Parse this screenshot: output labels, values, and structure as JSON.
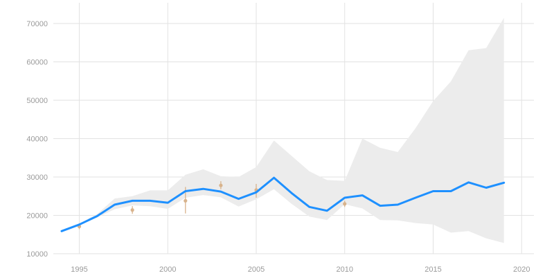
{
  "colors": {
    "line": "#1e90ff",
    "band": "#ececec",
    "grid": "#e2e2e2",
    "observation": "#d8b38c",
    "tick_text": "#9a9a9a"
  },
  "chart_data": {
    "type": "line",
    "grid": true,
    "legend": "none",
    "xlim": [
      1992,
      2021
    ],
    "ylim": [
      10000,
      72000
    ],
    "x_ticks": [
      "1995",
      "2000",
      "2005",
      "2010",
      "2015",
      "2020"
    ],
    "y_ticks": [
      "10000",
      "20000",
      "30000",
      "40000",
      "50000",
      "60000",
      "70000"
    ],
    "series": [
      {
        "kind": "line",
        "x": [
          1994,
          1995,
          1996,
          1997,
          1998,
          1999,
          2000,
          2001,
          2002,
          2003,
          2004,
          2005,
          2006,
          2007,
          2008,
          2009,
          2010,
          2011,
          2012,
          2013,
          2014,
          2015,
          2016,
          2017,
          2018,
          2019
        ],
        "values": [
          15900,
          17600,
          19800,
          22800,
          23800,
          23800,
          23300,
          26300,
          26900,
          26200,
          24300,
          26000,
          29800,
          25800,
          22200,
          21200,
          24600,
          25200,
          22500,
          22800,
          24600,
          26300,
          26300,
          28600,
          27200,
          28500
        ]
      },
      {
        "kind": "band",
        "x": [
          1994,
          1995,
          1996,
          1997,
          1998,
          1999,
          2000,
          2001,
          2002,
          2003,
          2004,
          2005,
          2006,
          2007,
          2008,
          2009,
          2010,
          2011,
          2012,
          2013,
          2014,
          2015,
          2016,
          2017,
          2018,
          2019
        ],
        "upper": [
          15900,
          17800,
          20300,
          24400,
          25000,
          26500,
          26500,
          30600,
          32000,
          30200,
          30000,
          32600,
          39500,
          35500,
          31500,
          29200,
          29000,
          40000,
          37600,
          36500,
          42700,
          49800,
          54900,
          63000,
          63600,
          71500
        ],
        "lower": [
          15900,
          17400,
          19400,
          21600,
          22600,
          22400,
          21700,
          24600,
          25300,
          24700,
          22300,
          24200,
          26800,
          23000,
          19700,
          18800,
          22900,
          21800,
          18800,
          18700,
          18000,
          17600,
          15500,
          15900,
          14000,
          12800
        ]
      },
      {
        "kind": "observations",
        "points": [
          {
            "x": 1995,
            "y": 17100,
            "low": 16400,
            "high": 17900
          },
          {
            "x": 1998,
            "y": 21400,
            "low": 20400,
            "high": 22400
          },
          {
            "x": 2001,
            "y": 23800,
            "low": 20500,
            "high": 27400
          },
          {
            "x": 2003,
            "y": 27800,
            "low": 26800,
            "high": 28900
          },
          {
            "x": 2005,
            "y": 26600,
            "low": 24600,
            "high": 28200
          },
          {
            "x": 2010,
            "y": 23000,
            "low": 22200,
            "high": 23800
          }
        ]
      }
    ]
  }
}
